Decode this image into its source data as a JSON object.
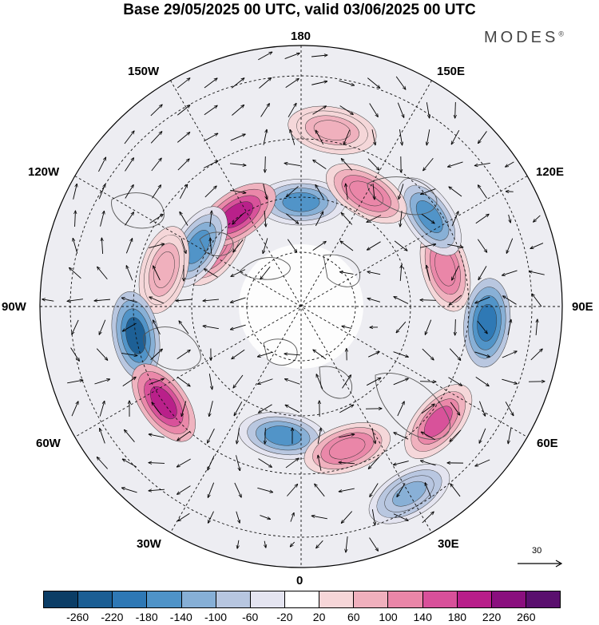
{
  "title": "Base 29/05/2025 00 UTC, valid 03/06/2025 00 UTC",
  "brand": "MODES",
  "brand_mark": "®",
  "lon_labels": {
    "top": "180",
    "bottom": "0",
    "left": "90W",
    "right": "90E",
    "upper_left": "150W",
    "upper_right": "150E",
    "mid_upper_left": "120W",
    "mid_upper_right": "120E",
    "mid_lower_left": "60W",
    "mid_lower_right": "60E",
    "lower_left": "30W",
    "lower_right": "30E"
  },
  "reference_vector": {
    "label": "30"
  },
  "colorbar": {
    "colors": [
      "#0b3d66",
      "#1b5e94",
      "#2e78b5",
      "#4f93c8",
      "#86afd6",
      "#b7c6e0",
      "#e4e4f0",
      "#ffffff",
      "#f6d6d8",
      "#f0b0bd",
      "#ea86a8",
      "#d8509a",
      "#b81e8a",
      "#8a0f7e",
      "#5a0f6e"
    ],
    "ticks": [
      "-260",
      "-220",
      "-180",
      "-140",
      "-100",
      "-60",
      "-20",
      "20",
      "60",
      "100",
      "140",
      "180",
      "220",
      "260"
    ]
  },
  "map": {
    "projection": "north-polar-stereographic",
    "field": "anomaly",
    "anomalies": [
      {
        "id": "a1",
        "sign": "neg",
        "level": -140,
        "lon": 180,
        "lat": 62
      },
      {
        "id": "a2",
        "sign": "pos",
        "level": 140,
        "lon": -125,
        "lat": 62
      },
      {
        "id": "a3",
        "sign": "pos",
        "level": 220,
        "lon": -145,
        "lat": 60
      },
      {
        "id": "a4",
        "sign": "neg",
        "level": -140,
        "lon": -120,
        "lat": 58
      },
      {
        "id": "a5",
        "sign": "pos",
        "level": 100,
        "lon": -105,
        "lat": 52
      },
      {
        "id": "a6",
        "sign": "neg",
        "level": -220,
        "lon": -80,
        "lat": 45
      },
      {
        "id": "a7",
        "sign": "pos",
        "level": 220,
        "lon": -55,
        "lat": 45
      },
      {
        "id": "a8",
        "sign": "neg",
        "level": -140,
        "lon": -8,
        "lat": 55
      },
      {
        "id": "a9",
        "sign": "pos",
        "level": 140,
        "lon": 18,
        "lat": 50
      },
      {
        "id": "a10",
        "sign": "neg",
        "level": -100,
        "lon": 30,
        "lat": 32
      },
      {
        "id": "a11",
        "sign": "pos",
        "level": 180,
        "lon": 50,
        "lat": 42
      },
      {
        "id": "a12",
        "sign": "neg",
        "level": -180,
        "lon": 85,
        "lat": 40
      },
      {
        "id": "a13",
        "sign": "pos",
        "level": 140,
        "lon": 105,
        "lat": 50
      },
      {
        "id": "a14",
        "sign": "neg",
        "level": -140,
        "lon": 125,
        "lat": 48
      },
      {
        "id": "a15",
        "sign": "pos",
        "level": 140,
        "lon": 150,
        "lat": 55
      },
      {
        "id": "a16",
        "sign": "pos",
        "level": 100,
        "lon": 170,
        "lat": 42
      }
    ]
  }
}
